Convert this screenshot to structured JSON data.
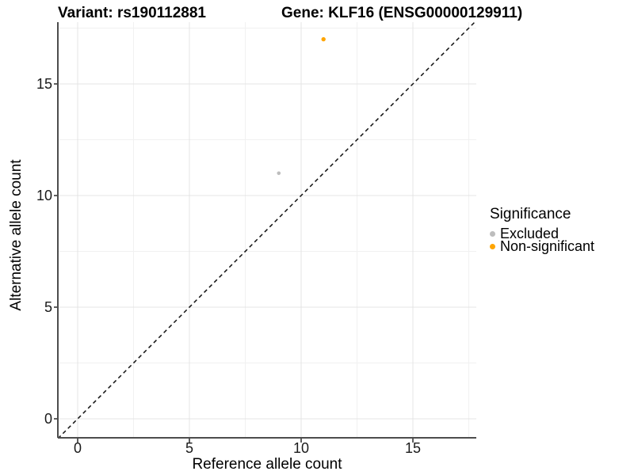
{
  "header": {
    "variant_title": "Variant: rs190112881",
    "gene_title": "Gene: KLF16 (ENSG00000129911)"
  },
  "axes": {
    "x": {
      "label": "Reference allele count",
      "tick_values": [
        0,
        5,
        10,
        15
      ]
    },
    "y": {
      "label": "Alternative allele count",
      "tick_values": [
        0,
        5,
        10,
        15
      ]
    }
  },
  "legend": {
    "title": "Significance",
    "items": [
      {
        "label": "Excluded",
        "color": "#BDBDBD"
      },
      {
        "label": "Non-significant",
        "color": "#FFA500"
      }
    ]
  },
  "style": {
    "background": "#FFFFFF",
    "grid_major_color": "#E4E4E4",
    "grid_minor_color": "#F1F1F1",
    "axis_line_color": "#4D4D4D",
    "tick_color": "#4D4D4D",
    "identity_line_color": "#111111"
  },
  "chart_data": {
    "type": "scatter",
    "title": "Variant: rs190112881   Gene: KLF16 (ENSG00000129911)",
    "xlabel": "Reference allele count",
    "ylabel": "Alternative allele count",
    "xlim": [
      -0.9,
      17.9
    ],
    "ylim": [
      -0.9,
      17.9
    ],
    "x_ticks": [
      0,
      5,
      10,
      15
    ],
    "y_ticks": [
      0,
      5,
      10,
      15
    ],
    "minor_ticks": [
      2.5,
      7.5,
      12.5,
      17.5
    ],
    "grid": true,
    "legend_title": "Significance",
    "legend_position": "right",
    "series": [
      {
        "name": "Excluded",
        "color": "#BDBDBD",
        "marker_radius_px": 2.3,
        "points": [
          {
            "x": 9,
            "y": 11
          }
        ]
      },
      {
        "name": "Non-significant",
        "color": "#FFA500",
        "marker_radius_px": 2.7,
        "points": [
          {
            "x": 11,
            "y": 17
          }
        ]
      }
    ],
    "identity_line": {
      "label": "y = x",
      "style": "dashed",
      "color": "#111111"
    }
  }
}
